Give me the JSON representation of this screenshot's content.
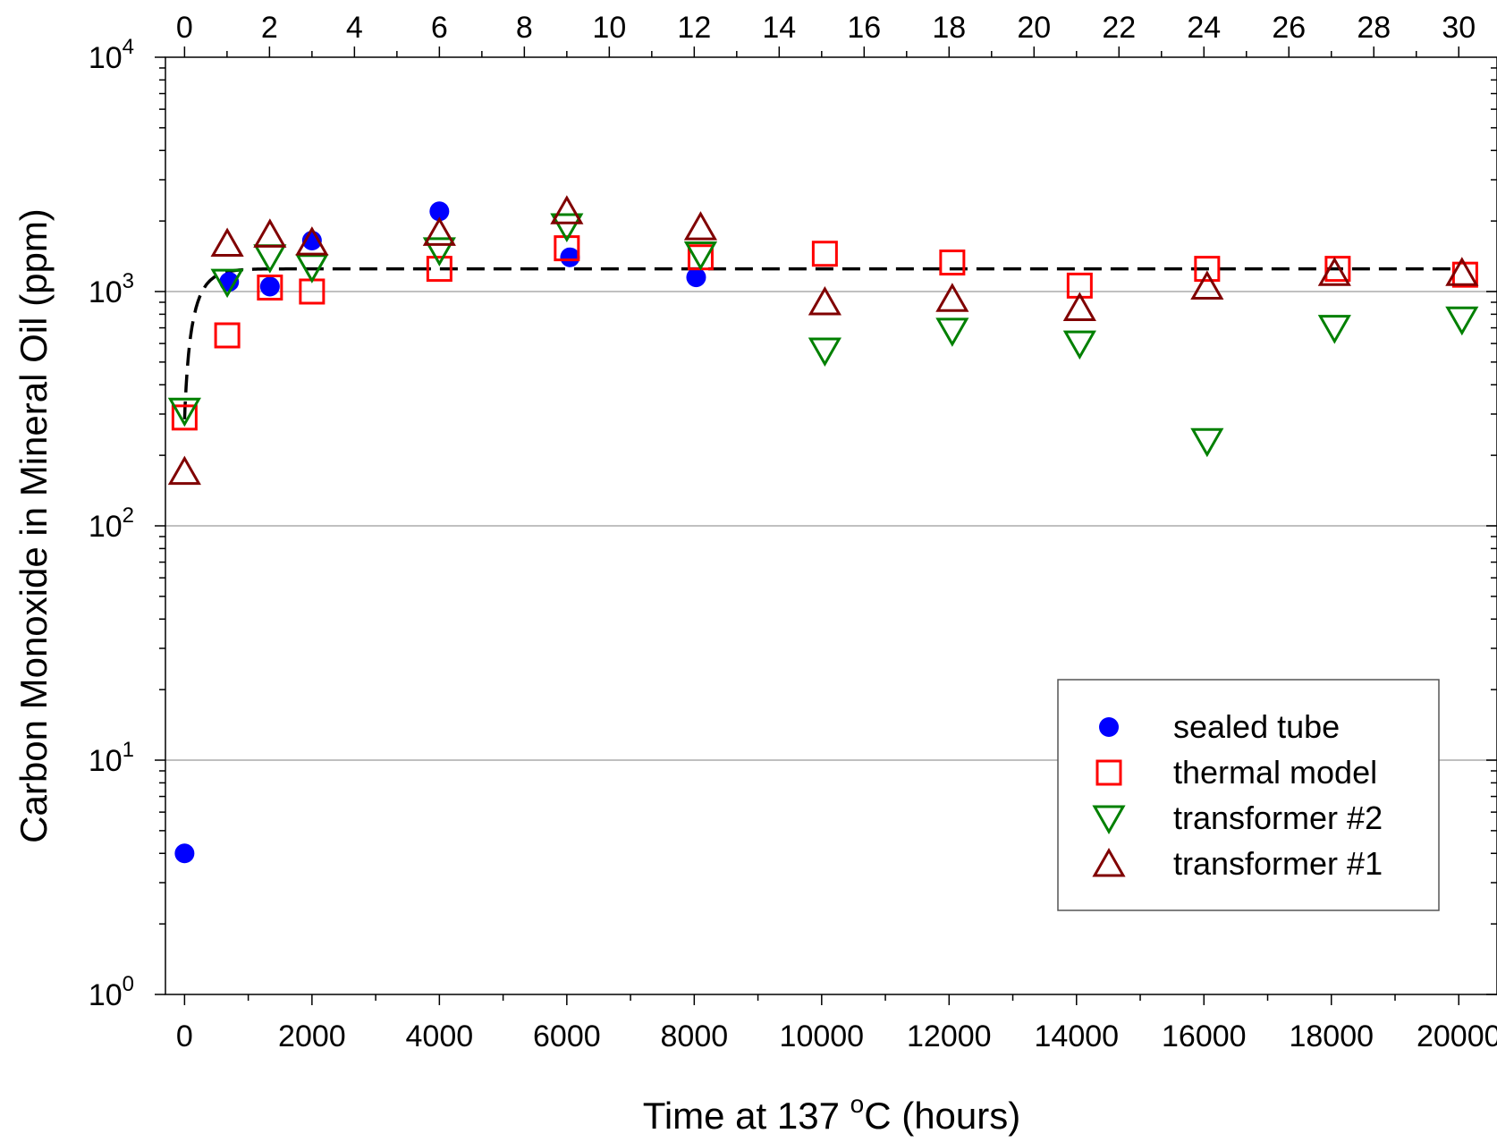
{
  "chart_data": {
    "type": "scatter",
    "xlabel": "Time at 137 °C (hours)",
    "xlabel_parts": {
      "prefix": "Time at 137 ",
      "sup": "o",
      "suffix": "C (hours)"
    },
    "ylabel": "Carbon Monoxide in Mineral Oil (ppm)",
    "xlim": [
      -300,
      20600
    ],
    "ylim": [
      1,
      10000
    ],
    "y_scale": "log",
    "x_ticks": [
      0,
      2000,
      4000,
      6000,
      8000,
      10000,
      12000,
      14000,
      16000,
      18000,
      20000
    ],
    "x_tick_labels": [
      "0",
      "2000",
      "4000",
      "6000",
      "8000",
      "10000",
      "12000",
      "14000",
      "16000",
      "18000",
      "20000"
    ],
    "top_ticks": [
      0,
      2,
      4,
      6,
      8,
      10,
      12,
      14,
      16,
      18,
      20,
      22,
      24,
      26,
      28,
      30
    ],
    "top_tick_labels": [
      "0",
      "2",
      "4",
      "6",
      "8",
      "10",
      "12",
      "14",
      "16",
      "18",
      "20",
      "22",
      "24",
      "26",
      "28",
      "30"
    ],
    "y_ticks": [
      1,
      10,
      100,
      1000,
      10000
    ],
    "y_tick_labels": [
      {
        "base": "10",
        "exp": "0"
      },
      {
        "base": "10",
        "exp": "1"
      },
      {
        "base": "10",
        "exp": "2"
      },
      {
        "base": "10",
        "exp": "3"
      },
      {
        "base": "10",
        "exp": "4"
      }
    ],
    "grid": "horizontal at decades",
    "legend_position": "lower-right",
    "series": [
      {
        "name": "sealed tube",
        "marker": "filled-circle",
        "color": "#0000ff",
        "points": [
          [
            0,
            4
          ],
          [
            700,
            1100
          ],
          [
            1340,
            1050
          ],
          [
            2000,
            1650
          ],
          [
            4000,
            2200
          ],
          [
            6050,
            1400
          ],
          [
            8030,
            1150
          ]
        ]
      },
      {
        "name": "thermal model",
        "marker": "open-square",
        "color": "#ff0000",
        "points": [
          [
            0,
            290
          ],
          [
            670,
            650
          ],
          [
            1340,
            1040
          ],
          [
            2000,
            1000
          ],
          [
            4000,
            1250
          ],
          [
            6000,
            1530
          ],
          [
            8100,
            1400
          ],
          [
            10050,
            1450
          ],
          [
            12050,
            1330
          ],
          [
            14050,
            1060
          ],
          [
            16050,
            1250
          ],
          [
            18100,
            1250
          ],
          [
            20100,
            1180
          ]
        ]
      },
      {
        "name": "transformer #2",
        "marker": "open-triangle-down",
        "color": "#008000",
        "points": [
          [
            0,
            310
          ],
          [
            670,
            1100
          ],
          [
            1340,
            1400
          ],
          [
            2000,
            1270
          ],
          [
            4000,
            1500
          ],
          [
            6000,
            1900
          ],
          [
            8100,
            1440
          ],
          [
            10050,
            560
          ],
          [
            12050,
            680
          ],
          [
            14050,
            600
          ],
          [
            16050,
            230
          ],
          [
            18050,
            700
          ],
          [
            20050,
            760
          ]
        ]
      },
      {
        "name": "transformer #1",
        "marker": "open-triangle-up",
        "color": "#800000",
        "points": [
          [
            0,
            170
          ],
          [
            670,
            1600
          ],
          [
            1340,
            1750
          ],
          [
            2000,
            1620
          ],
          [
            4000,
            1780
          ],
          [
            6000,
            2200
          ],
          [
            8100,
            1880
          ],
          [
            10050,
            900
          ],
          [
            12050,
            930
          ],
          [
            14050,
            850
          ],
          [
            16050,
            1050
          ],
          [
            18050,
            1200
          ],
          [
            20050,
            1200
          ]
        ]
      }
    ],
    "fit_curve": {
      "style": "dashed",
      "color": "#000000",
      "x_start": 0,
      "x_end": 20000,
      "y_start": 285,
      "plateau": 1250,
      "rate_per_hour": 0.0049
    }
  }
}
